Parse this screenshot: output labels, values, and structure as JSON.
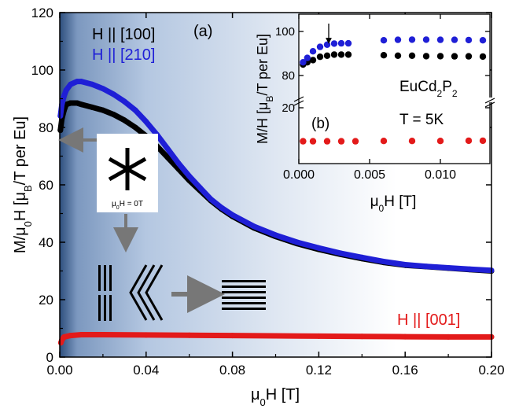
{
  "chart_data": [
    {
      "panel_label": "(a)",
      "type": "scatter",
      "xlabel": "μ0H [T]",
      "ylabel": "M/μ0H [μB/T per Eu]",
      "xlim": [
        0,
        0.2
      ],
      "ylim": [
        0,
        120
      ],
      "x_ticks": [
        "0.00",
        "0.04",
        "0.08",
        "0.12",
        "0.16",
        "0.20"
      ],
      "y_ticks": [
        "0",
        "20",
        "40",
        "60",
        "80",
        "100",
        "120"
      ],
      "series": [
        {
          "name": "H || [100]",
          "color": "#000000",
          "x": [
            0.0003,
            0.001,
            0.002,
            0.003,
            0.005,
            0.008,
            0.01,
            0.015,
            0.02,
            0.025,
            0.03,
            0.035,
            0.04,
            0.045,
            0.05,
            0.055,
            0.06,
            0.065,
            0.07,
            0.075,
            0.08,
            0.09,
            0.1,
            0.11,
            0.12,
            0.13,
            0.14,
            0.15,
            0.16,
            0.17,
            0.18,
            0.19,
            0.2
          ],
          "y": [
            79,
            83,
            86,
            88,
            88.5,
            88.5,
            88,
            87,
            86,
            84.5,
            82.5,
            80,
            77,
            73.5,
            69.5,
            65.5,
            61.5,
            58,
            54.5,
            51.5,
            49,
            45,
            42,
            39.5,
            37.5,
            35.8,
            34.3,
            33,
            32,
            31.5,
            31,
            30.5,
            30
          ]
        },
        {
          "name": "H || [210]",
          "color": "#1f1fd6",
          "x": [
            0.0003,
            0.001,
            0.002,
            0.003,
            0.005,
            0.008,
            0.01,
            0.015,
            0.02,
            0.025,
            0.03,
            0.035,
            0.04,
            0.045,
            0.05,
            0.055,
            0.06,
            0.065,
            0.07,
            0.075,
            0.08,
            0.09,
            0.1,
            0.11,
            0.12,
            0.13,
            0.14,
            0.15,
            0.16,
            0.17,
            0.18,
            0.19,
            0.2
          ],
          "y": [
            84,
            88,
            91,
            93,
            95,
            96,
            96,
            95,
            93.5,
            91.5,
            89,
            86,
            82,
            77.5,
            72.5,
            67.5,
            63,
            59,
            55,
            52,
            49.5,
            45.5,
            42.5,
            40,
            38,
            36.2,
            34.7,
            33.3,
            32.2,
            31.6,
            31.1,
            30.6,
            30.2
          ]
        },
        {
          "name": "H || [001]",
          "color": "#e31a1a",
          "x": [
            0.0005,
            0.001,
            0.002,
            0.005,
            0.01,
            0.02,
            0.04,
            0.06,
            0.08,
            0.1,
            0.12,
            0.14,
            0.16,
            0.18,
            0.2
          ],
          "y": [
            5,
            6,
            7,
            7.5,
            7.8,
            7.8,
            7.7,
            7.6,
            7.5,
            7.4,
            7.3,
            7.2,
            7.1,
            7.0,
            7.0
          ]
        }
      ],
      "legend": {
        "entries": [
          "H || [100]",
          "H || [210]",
          "H || [001]"
        ]
      },
      "inset_field_label": "μ0H = 0T"
    },
    {
      "panel_label": "(b)",
      "type": "scatter",
      "xlabel": "μ0H [T]",
      "ylabel": "M/H [μB/T per Eu]",
      "xlim": [
        0,
        0.0135
      ],
      "x_ticks": [
        "0.000",
        "0.005",
        "0.010"
      ],
      "y_ticks": [
        "20",
        "80",
        "100"
      ],
      "y_axis_break": true,
      "text": [
        "EuCd2P2",
        "T = 5K"
      ],
      "arrow_at_x": 0.0022,
      "series": [
        {
          "name": "H || [100]",
          "color": "#000000",
          "x": [
            0.0003,
            0.0006,
            0.001,
            0.0015,
            0.002,
            0.0025,
            0.003,
            0.0035,
            0.006,
            0.007,
            0.008,
            0.009,
            0.01,
            0.011,
            0.012,
            0.013
          ],
          "y": [
            85,
            86,
            87,
            88.5,
            89,
            89.5,
            89.5,
            89.5,
            89.2,
            89,
            89,
            88.8,
            88.8,
            88.7,
            88.7,
            88.6
          ]
        },
        {
          "name": "H || [210]",
          "color": "#1f1fd6",
          "x": [
            0.0003,
            0.0006,
            0.001,
            0.0015,
            0.002,
            0.0025,
            0.003,
            0.0035,
            0.006,
            0.007,
            0.008,
            0.009,
            0.01,
            0.011,
            0.012,
            0.013
          ],
          "y": [
            86,
            88,
            91,
            93,
            94,
            94.5,
            94.6,
            94.6,
            96,
            96.2,
            96.3,
            96.3,
            96.2,
            96.2,
            96.1,
            96
          ]
        },
        {
          "name": "H || [001]",
          "color": "#e31a1a",
          "x": [
            0.0003,
            0.001,
            0.002,
            0.003,
            0.004,
            0.006,
            0.008,
            0.01,
            0.012,
            0.013
          ],
          "y": [
            8,
            8,
            8,
            8,
            8,
            8.1,
            8.1,
            8.1,
            8.2,
            8.2
          ]
        }
      ]
    }
  ]
}
